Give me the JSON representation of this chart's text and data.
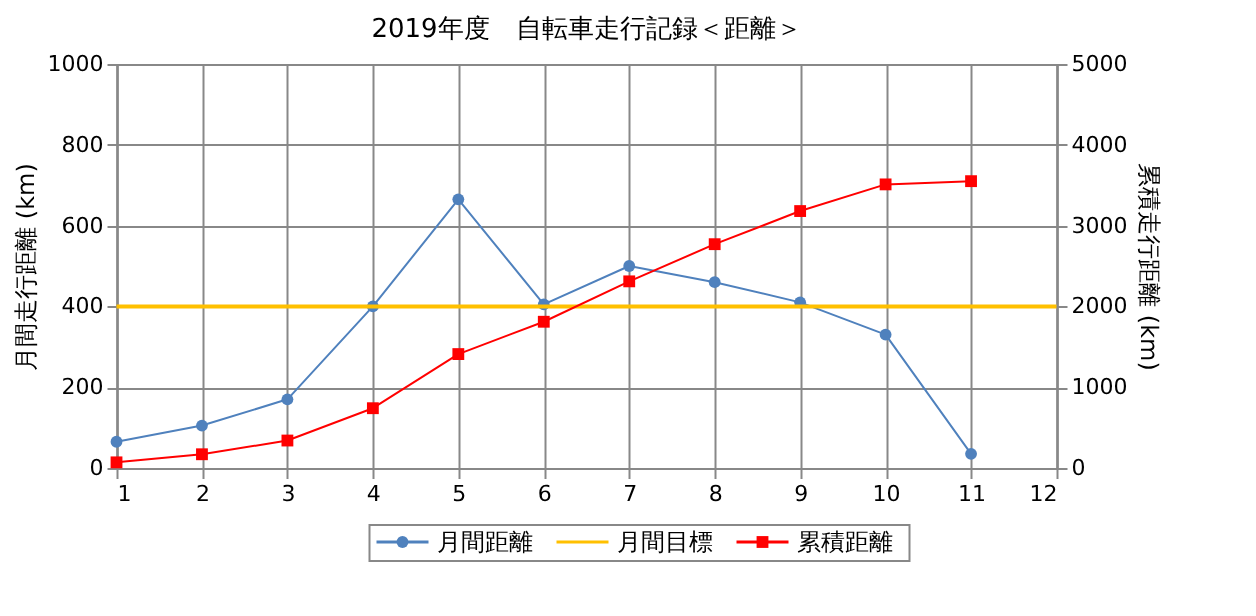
{
  "chart_data": {
    "type": "line",
    "title": "2019年度　自転車走行記録＜距離＞",
    "ylabel": "月間走行距離 (km)",
    "y2label": "累積走行距離 (km)",
    "x": [
      1,
      2,
      3,
      4,
      5,
      6,
      7,
      8,
      9,
      10,
      11
    ],
    "series": [
      {
        "name": "月間距離",
        "color": "#4f81bd",
        "marker": "circle",
        "values": [
          65,
          105,
          170,
          400,
          665,
          405,
          500,
          460,
          410,
          330,
          35
        ]
      },
      {
        "name": "累積距離",
        "color": "#ff0000",
        "marker": "square",
        "axis": "y2",
        "values": [
          70,
          170,
          340,
          740,
          1410,
          1810,
          2310,
          2770,
          3180,
          3510,
          3550
        ]
      }
    ],
    "ref_lines": [
      {
        "axis": "y",
        "value": 400,
        "label": "月間目標",
        "color": "#ffc000"
      }
    ],
    "xlim": [
      1,
      12
    ],
    "xticks": [
      1,
      2,
      3,
      4,
      5,
      6,
      7,
      8,
      9,
      10,
      11,
      12
    ],
    "ylim": [
      0,
      1000
    ],
    "yticks": [
      0,
      200,
      400,
      600,
      800,
      1000
    ],
    "y2lim": [
      0,
      5000
    ],
    "y2ticks": [
      0,
      1000,
      2000,
      3000,
      4000,
      5000
    ],
    "grid": true,
    "legend": "bottom"
  }
}
